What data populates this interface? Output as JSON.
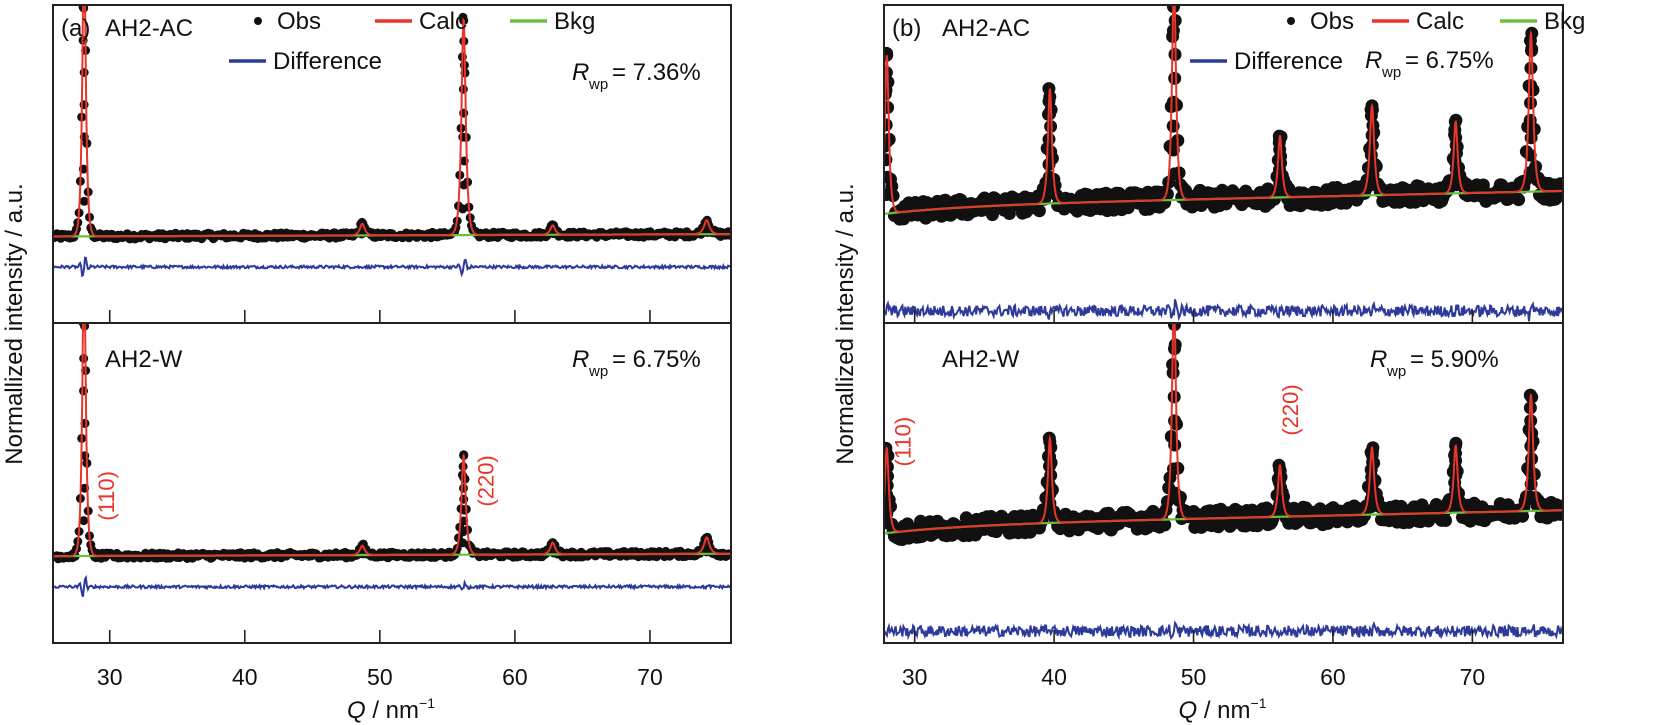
{
  "colors": {
    "obs": "#111111",
    "calc": "#e8342a",
    "bkg": "#6cbf3a",
    "difference": "#2e3a9a",
    "frame": "#222222"
  },
  "chart_data": [
    {
      "type": "line",
      "panel_label": "(a)",
      "xlabel_main": "Q",
      "xlabel_unit": " / nm",
      "xlabel_sup": "−1",
      "ylabel": "Normallized intensity / a.u.",
      "xlim": [
        25.8,
        76.0
      ],
      "xticks": [
        30,
        40,
        50,
        60,
        70
      ],
      "xtick_labels": [
        "30",
        "40",
        "50",
        "60",
        "70"
      ],
      "legend": {
        "placement": "top",
        "entries": [
          {
            "key": "obs",
            "label": "Obs",
            "marker": "dot"
          },
          {
            "key": "calc",
            "label": "Calc",
            "marker": "line"
          },
          {
            "key": "bkg",
            "label": "Bkg",
            "marker": "line"
          },
          {
            "key": "difference",
            "label": "Difference",
            "marker": "line"
          }
        ]
      },
      "subplots": [
        {
          "sample": "AH2-AC",
          "rwp_symbol": "R",
          "rwp_sub": "wp",
          "rwp_value": " = 7.36%",
          "baseline": 0.07,
          "background_slope": 0.01,
          "difference_offset": -0.06,
          "ylim": [
            -0.15,
            1.05
          ],
          "peaks": [
            {
              "q": 28.1,
              "height": 1.25,
              "width": 0.18
            },
            {
              "q": 48.7,
              "height": 0.05,
              "width": 0.25
            },
            {
              "q": 56.2,
              "height": 0.93,
              "width": 0.22
            },
            {
              "q": 62.8,
              "height": 0.04,
              "width": 0.25
            },
            {
              "q": 74.2,
              "height": 0.06,
              "width": 0.28
            }
          ],
          "annotations": []
        },
        {
          "sample": "AH2-W",
          "rwp_symbol": "R",
          "rwp_sub": "wp",
          "rwp_value": " = 6.75%",
          "baseline": 0.07,
          "background_slope": 0.01,
          "difference_offset": -0.06,
          "ylim": [
            -0.15,
            1.05
          ],
          "peaks": [
            {
              "q": 28.1,
              "height": 1.25,
              "width": 0.18
            },
            {
              "q": 48.7,
              "height": 0.04,
              "width": 0.25
            },
            {
              "q": 56.2,
              "height": 0.42,
              "width": 0.22
            },
            {
              "q": 62.8,
              "height": 0.05,
              "width": 0.25
            },
            {
              "q": 74.2,
              "height": 0.07,
              "width": 0.28
            }
          ],
          "annotations": [
            {
              "text": "(110)",
              "q": 30.3,
              "y": 0.22
            },
            {
              "text": "(220)",
              "q": 58.4,
              "y": 0.28
            }
          ]
        }
      ]
    },
    {
      "type": "line",
      "panel_label": "(b)",
      "xlabel_main": "Q",
      "xlabel_unit": " / nm",
      "xlabel_sup": "−1",
      "ylabel": "Normallized intensity / a.u.",
      "xlim": [
        27.8,
        76.5
      ],
      "xticks": [
        30,
        40,
        50,
        60,
        70
      ],
      "xtick_labels": [
        "30",
        "40",
        "50",
        "60",
        "70"
      ],
      "legend": {
        "placement": "top-right",
        "entries": [
          {
            "key": "obs",
            "label": "Obs",
            "marker": "dot"
          },
          {
            "key": "calc",
            "label": "Calc",
            "marker": "line"
          },
          {
            "key": "bkg",
            "label": "Bkg",
            "marker": "line"
          },
          {
            "key": "difference",
            "label": "Difference",
            "marker": "line"
          }
        ]
      },
      "subplots": [
        {
          "sample": "AH2-AC",
          "rwp_symbol": "R",
          "rwp_sub": "wp",
          "rwp_value": " = 6.75%",
          "baseline": 0.27,
          "background_slope": 0.06,
          "difference_offset": -0.14,
          "ylim": [
            -0.05,
            1.05
          ],
          "peaks": [
            {
              "q": 28.0,
              "height": 0.62,
              "width": 0.2
            },
            {
              "q": 39.7,
              "height": 0.45,
              "width": 0.2
            },
            {
              "q": 48.6,
              "height": 0.85,
              "width": 0.2
            },
            {
              "q": 56.2,
              "height": 0.24,
              "width": 0.2
            },
            {
              "q": 62.8,
              "height": 0.35,
              "width": 0.22
            },
            {
              "q": 68.8,
              "height": 0.28,
              "width": 0.2
            },
            {
              "q": 74.2,
              "height": 0.62,
              "width": 0.22
            }
          ],
          "annotations": []
        },
        {
          "sample": "AH2-W",
          "rwp_symbol": "R",
          "rwp_sub": "wp",
          "rwp_value": " = 5.90%",
          "baseline": 0.27,
          "background_slope": 0.06,
          "difference_offset": -0.14,
          "ylim": [
            -0.05,
            1.05
          ],
          "peaks": [
            {
              "q": 28.0,
              "height": 0.33,
              "width": 0.2
            },
            {
              "q": 39.7,
              "height": 0.33,
              "width": 0.2
            },
            {
              "q": 48.6,
              "height": 0.85,
              "width": 0.2
            },
            {
              "q": 56.2,
              "height": 0.2,
              "width": 0.2
            },
            {
              "q": 62.8,
              "height": 0.26,
              "width": 0.22
            },
            {
              "q": 68.8,
              "height": 0.26,
              "width": 0.2
            },
            {
              "q": 74.2,
              "height": 0.45,
              "width": 0.22
            }
          ],
          "annotations": [
            {
              "text": "(110)",
              "q": 29.7,
              "y": 0.5
            },
            {
              "text": "(220)",
              "q": 57.5,
              "y": 0.62
            }
          ]
        }
      ]
    }
  ]
}
